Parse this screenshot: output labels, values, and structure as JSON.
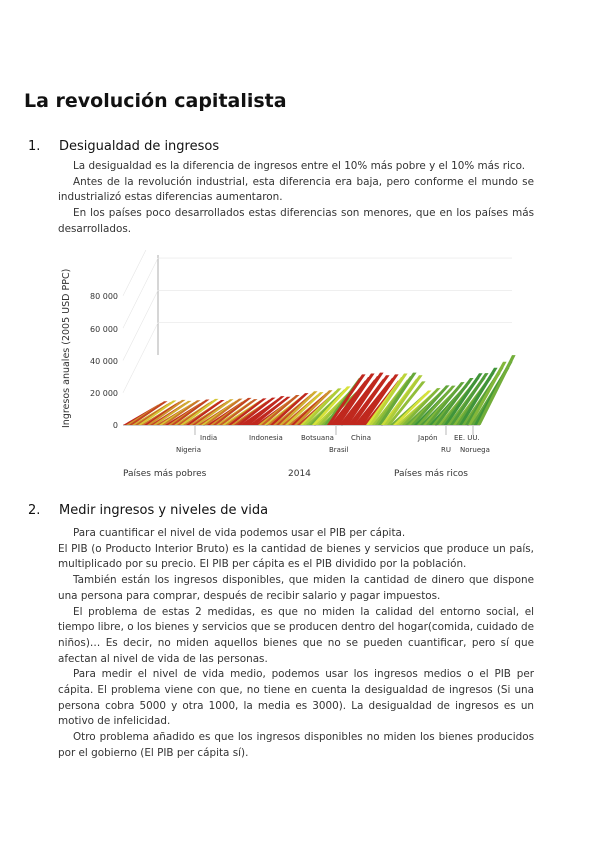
{
  "title": "La revolución capitalista",
  "section1": {
    "number": "1.",
    "heading": "Desigualdad de ingresos",
    "paragraphs": [
      "La desigualdad es la diferencia de ingresos entre el 10% más pobre y el 10% más rico.",
      "Antes de la revolución industrial, esta diferencia era baja, pero conforme el mundo se industrializó estas diferencias aumentaron.",
      "En los países poco desarrollados estas diferencias son menores, que en los países más desarrollados."
    ]
  },
  "figure": {
    "y_axis_label": "Ingresos anuales (2005 USD PPC)",
    "y_ticks": [
      "80 000",
      "60 000",
      "40 000",
      "20 000",
      "0"
    ],
    "country_labels": [
      "India",
      "Nigeria",
      "Indonesia",
      "Botsuana",
      "Brasil",
      "China",
      "Japón",
      "RU",
      "EE. UU.",
      "Noruega"
    ],
    "bottom_left": "Países más pobres",
    "bottom_center": "2014",
    "bottom_right": "Países más ricos",
    "colors": {
      "poor": "#c0281e",
      "mid": "#d8e23a",
      "rich": "#2e8b3a"
    }
  },
  "section2": {
    "number": "2.",
    "heading": "Medir ingresos y niveles de vida",
    "paragraphs": [
      "Para cuantificar el nivel de vida podemos usar el PIB per cápita.",
      "El PIB (o Producto Interior Bruto) es la cantidad de bienes y servicios que produce un país, multiplicado por su precio. El PIB per cápita es el PIB dividido por la población.",
      "También están los ingresos disponibles, que miden la cantidad de dinero que dispone una persona para comprar, después de recibir salario y pagar impuestos.",
      "El problema de estas 2 medidas, es que no miden la calidad del entorno social, el tiempo libre, o los bienes y servicios que se producen dentro del hogar(comida, cuidado de niños)… Es decir, no miden aquellos bienes que no se pueden cuantificar, pero sí que afectan al nivel de vida de las personas.",
      "Para medir el nivel de vida medio, podemos usar los ingresos medios o el PIB per cápita. El problema viene con que, no tiene en cuenta la desigualdad de ingresos (Si una persona cobra 5000 y otra 1000, la media es 3000). La desigualdad de ingresos es un motivo de infelicidad.",
      "Otro problema añadido es que los ingresos disponibles no miden los bienes producidos por el gobierno (El PIB per cápita sí)."
    ]
  }
}
